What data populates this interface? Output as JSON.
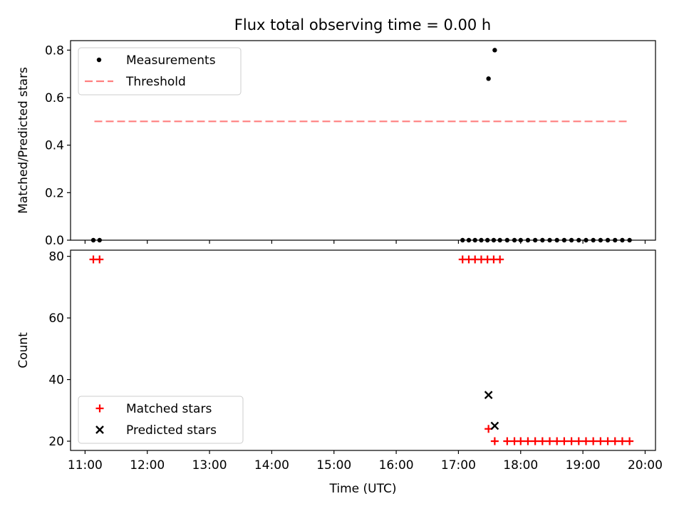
{
  "title": "Flux total observing time = 0.00 h",
  "chart_data": [
    {
      "type": "scatter",
      "panel": "top",
      "ylabel": "Matched/Predicted stars",
      "xlabel": "",
      "xlim": [
        "10:46",
        "20:10"
      ],
      "ylim": [
        0.0,
        0.84
      ],
      "yticks": [
        "0.0",
        "0.2",
        "0.4",
        "0.6",
        "0.8"
      ],
      "legend_position": "upper-left",
      "series": [
        {
          "name": "Measurements",
          "kind": "points",
          "color": "#000000",
          "x": [
            "11:08",
            "11:14",
            "17:04",
            "17:10",
            "17:16",
            "17:22",
            "17:28",
            "17:34",
            "17:40",
            "17:29",
            "17:35",
            "17:47",
            "17:54",
            "18:00",
            "18:07",
            "18:14",
            "18:21",
            "18:28",
            "18:35",
            "18:42",
            "18:49",
            "18:56",
            "19:03",
            "19:10",
            "19:17",
            "19:24",
            "19:31",
            "19:38",
            "19:45"
          ],
          "y": [
            0,
            0,
            0,
            0,
            0,
            0,
            0,
            0,
            0,
            0.68,
            0.8,
            0,
            0,
            0,
            0,
            0,
            0,
            0,
            0,
            0,
            0,
            0,
            0,
            0,
            0,
            0,
            0,
            0,
            0
          ]
        },
        {
          "name": "Threshold",
          "kind": "dashed-line",
          "color": "#ff7f7f",
          "x": [
            "11:09",
            "19:45"
          ],
          "y": [
            0.5,
            0.5
          ]
        }
      ]
    },
    {
      "type": "scatter",
      "panel": "bottom",
      "ylabel": "Count",
      "xlabel": "Time (UTC)",
      "xlim": [
        "10:46",
        "20:10"
      ],
      "ylim": [
        17,
        82
      ],
      "yticks": [
        "20",
        "40",
        "60",
        "80"
      ],
      "xticks": [
        "11:00",
        "12:00",
        "13:00",
        "14:00",
        "15:00",
        "16:00",
        "17:00",
        "18:00",
        "19:00",
        "20:00"
      ],
      "legend_position": "lower-left",
      "series": [
        {
          "name": "Matched stars",
          "marker": "plus",
          "color": "#ff0000",
          "x": [
            "11:08",
            "11:14",
            "17:04",
            "17:10",
            "17:16",
            "17:22",
            "17:28",
            "17:34",
            "17:40",
            "17:29",
            "17:35",
            "17:47",
            "17:54",
            "18:00",
            "18:07",
            "18:14",
            "18:21",
            "18:28",
            "18:35",
            "18:42",
            "18:49",
            "18:56",
            "19:03",
            "19:10",
            "19:17",
            "19:24",
            "19:31",
            "19:38",
            "19:45"
          ],
          "y": [
            79,
            79,
            79,
            79,
            79,
            79,
            79,
            79,
            79,
            24,
            20,
            20,
            20,
            20,
            20,
            20,
            20,
            20,
            20,
            20,
            20,
            20,
            20,
            20,
            20,
            20,
            20,
            20,
            20
          ]
        },
        {
          "name": "Predicted stars",
          "marker": "x",
          "color": "#000000",
          "x": [
            "17:29",
            "17:35"
          ],
          "y": [
            35,
            25
          ]
        }
      ]
    }
  ]
}
